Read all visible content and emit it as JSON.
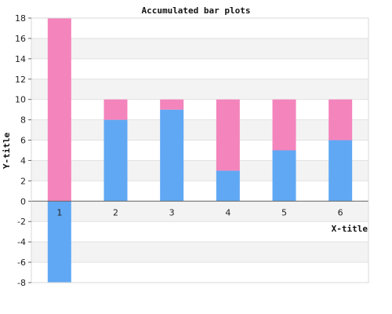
{
  "chart_data": {
    "type": "bar",
    "stacked": true,
    "title": "Accumulated bar plots",
    "xlabel": "X-title",
    "ylabel": "Y-title",
    "categories": [
      "1",
      "2",
      "3",
      "4",
      "5",
      "6"
    ],
    "series": [
      {
        "color": "#60a8f4",
        "values": [
          -8,
          8,
          9,
          3,
          5,
          6
        ]
      },
      {
        "color": "#f484bc",
        "values": [
          18,
          2,
          1,
          7,
          5,
          4
        ]
      }
    ],
    "ylim": [
      -8,
      18
    ],
    "yticks": [
      -8,
      -6,
      -4,
      -2,
      0,
      2,
      4,
      6,
      8,
      10,
      12,
      14,
      16,
      18
    ],
    "grid": true,
    "band_colors": [
      "#ffffff",
      "#f3f3f3"
    ]
  }
}
